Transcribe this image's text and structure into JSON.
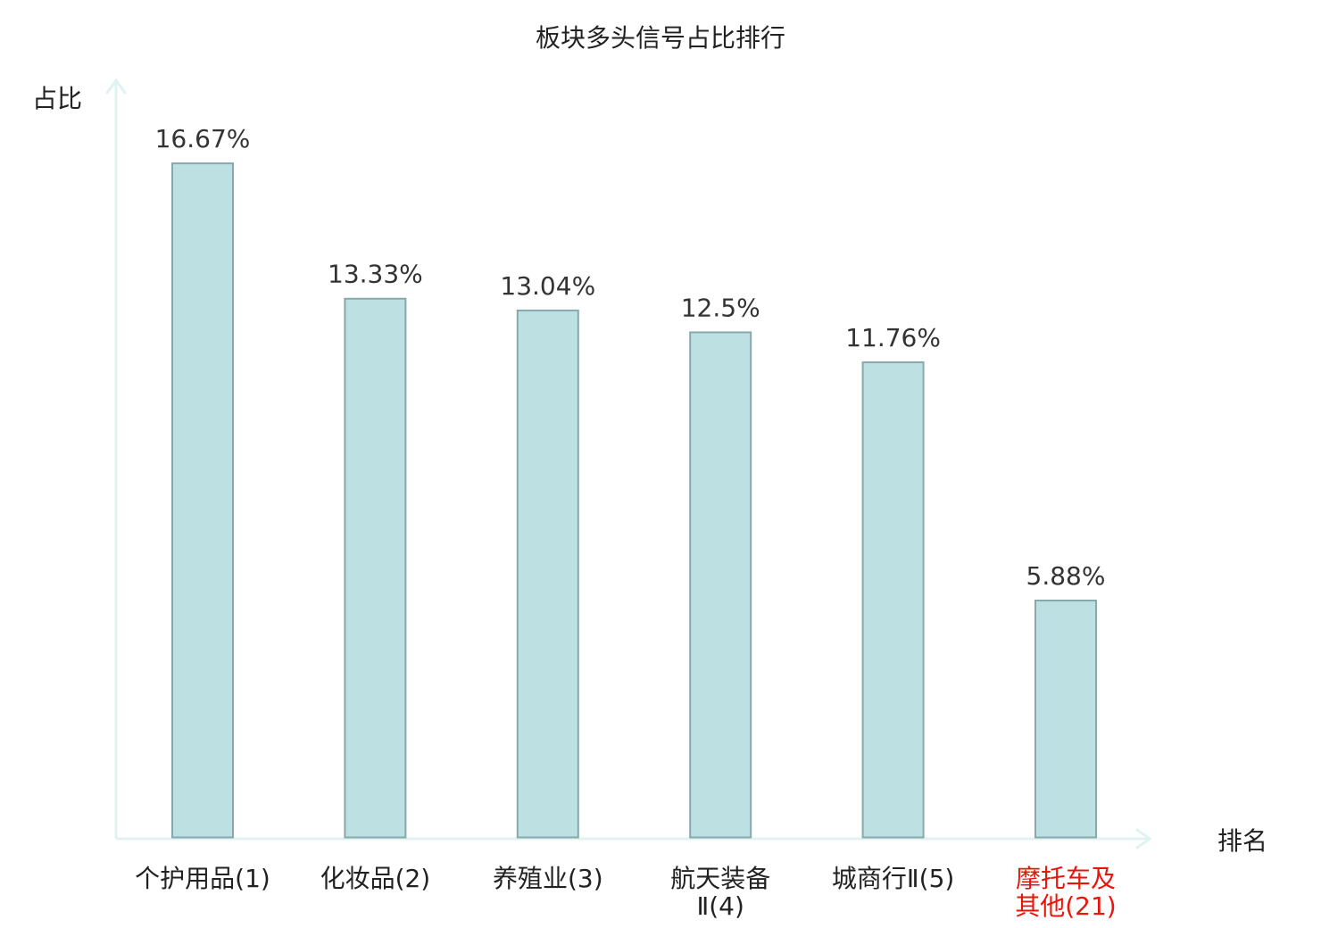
{
  "chart_data": {
    "type": "bar",
    "title": "板块多头信号占比排行",
    "xlabel": "排名",
    "ylabel": "占比",
    "ylim": [
      0,
      18.5
    ],
    "grid": false,
    "categories": [
      {
        "lines": [
          "个护用品(1)"
        ],
        "highlight": false
      },
      {
        "lines": [
          "化妆品(2)"
        ],
        "highlight": false
      },
      {
        "lines": [
          "养殖业(3)"
        ],
        "highlight": false
      },
      {
        "lines": [
          "航天装备",
          "Ⅱ(4)"
        ],
        "highlight": false
      },
      {
        "lines": [
          "城商行Ⅱ(5)"
        ],
        "highlight": false
      },
      {
        "lines": [
          "摩托车及",
          "其他(21)"
        ],
        "highlight": true
      }
    ],
    "values": [
      16.67,
      13.33,
      13.04,
      12.5,
      11.76,
      5.88
    ],
    "value_labels": [
      "16.67%",
      "13.33%",
      "13.04%",
      "12.5%",
      "11.76%",
      "5.88%"
    ],
    "colors": {
      "bar_fill": "#bde0e3",
      "bar_stroke": "#88a9ab",
      "axis": "#e0f3f1",
      "highlight_text": "#e8150b"
    }
  }
}
